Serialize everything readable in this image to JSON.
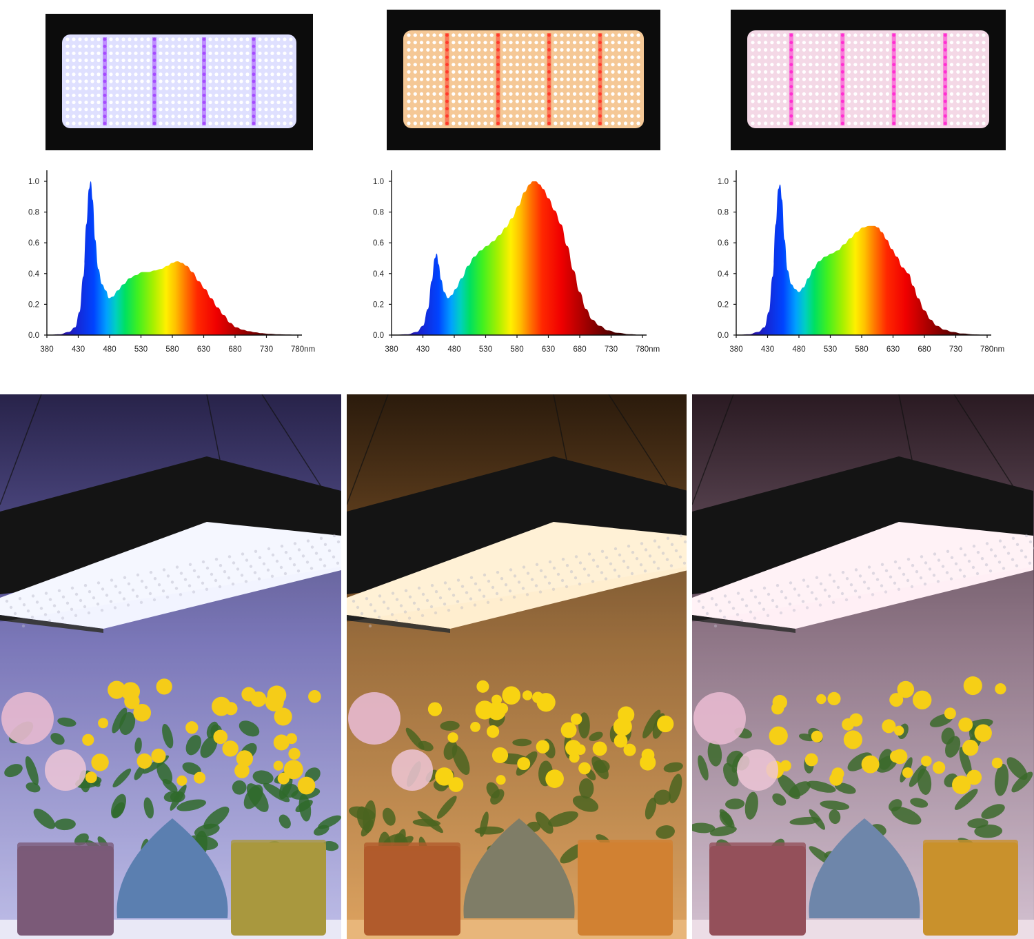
{
  "chart_data": [
    {
      "type": "area",
      "title": "",
      "xlabel": "",
      "ylabel": "",
      "x_unit": "nm",
      "xlim": [
        380,
        780
      ],
      "ylim": [
        0,
        1.0
      ],
      "x_ticks": [
        380,
        430,
        480,
        530,
        580,
        630,
        680,
        730,
        780
      ],
      "x_tick_labels": [
        "380",
        "430",
        "480",
        "530",
        "580",
        "630",
        "680",
        "730",
        "780nm"
      ],
      "y_ticks": [
        0,
        0.2,
        0.4,
        0.6,
        0.8,
        1.0
      ],
      "y_tick_labels": [
        "0.0",
        "0.2",
        "0.4",
        "0.6",
        "0.8",
        "1.0"
      ],
      "grid": false,
      "fill": "spectral-rainbow",
      "series": [
        {
          "x": [
            380,
            400,
            415,
            425,
            432,
            438,
            443,
            447,
            450,
            453,
            457,
            462,
            468,
            474,
            479,
            485,
            493,
            502,
            512,
            522,
            532,
            542,
            552,
            562,
            572,
            580,
            588,
            595,
            603,
            612,
            622,
            632,
            642,
            652,
            662,
            672,
            682,
            692,
            702,
            712,
            722,
            735,
            750,
            765,
            780
          ],
          "y": [
            0.0,
            0.005,
            0.02,
            0.05,
            0.15,
            0.38,
            0.72,
            0.95,
            1.0,
            0.88,
            0.62,
            0.43,
            0.33,
            0.29,
            0.24,
            0.25,
            0.29,
            0.33,
            0.37,
            0.39,
            0.41,
            0.41,
            0.42,
            0.43,
            0.45,
            0.47,
            0.48,
            0.47,
            0.45,
            0.41,
            0.35,
            0.3,
            0.24,
            0.18,
            0.13,
            0.08,
            0.05,
            0.035,
            0.025,
            0.018,
            0.012,
            0.008,
            0.005,
            0.003,
            0.0
          ]
        }
      ]
    },
    {
      "type": "area",
      "title": "",
      "xlabel": "",
      "ylabel": "",
      "x_unit": "nm",
      "xlim": [
        380,
        780
      ],
      "ylim": [
        0,
        1.0
      ],
      "x_ticks": [
        380,
        430,
        480,
        530,
        580,
        630,
        680,
        730,
        780
      ],
      "x_tick_labels": [
        "380",
        "430",
        "480",
        "530",
        "580",
        "630",
        "680",
        "730",
        "780nm"
      ],
      "y_ticks": [
        0,
        0.2,
        0.4,
        0.6,
        0.8,
        1.0
      ],
      "y_tick_labels": [
        "0.0",
        "0.2",
        "0.4",
        "0.6",
        "0.8",
        "1.0"
      ],
      "grid": false,
      "fill": "spectral-rainbow",
      "series": [
        {
          "x": [
            380,
            405,
            420,
            430,
            438,
            444,
            449,
            452,
            455,
            459,
            464,
            470,
            476,
            482,
            492,
            502,
            512,
            522,
            532,
            542,
            552,
            562,
            572,
            582,
            592,
            600,
            605,
            610,
            616,
            622,
            630,
            640,
            650,
            660,
            670,
            680,
            690,
            700,
            712,
            725,
            740,
            760,
            780
          ],
          "y": [
            0.0,
            0.005,
            0.02,
            0.06,
            0.17,
            0.35,
            0.5,
            0.53,
            0.46,
            0.36,
            0.28,
            0.24,
            0.26,
            0.3,
            0.37,
            0.45,
            0.51,
            0.55,
            0.58,
            0.61,
            0.65,
            0.7,
            0.76,
            0.84,
            0.93,
            0.98,
            1.0,
            1.0,
            0.98,
            0.95,
            0.89,
            0.81,
            0.72,
            0.58,
            0.42,
            0.28,
            0.17,
            0.1,
            0.06,
            0.03,
            0.015,
            0.006,
            0.0
          ]
        }
      ]
    },
    {
      "type": "area",
      "title": "",
      "xlabel": "",
      "ylabel": "",
      "x_unit": "nm",
      "xlim": [
        380,
        780
      ],
      "ylim": [
        0,
        1.0
      ],
      "x_ticks": [
        380,
        430,
        480,
        530,
        580,
        630,
        680,
        730,
        780
      ],
      "x_tick_labels": [
        "380",
        "430",
        "480",
        "530",
        "580",
        "630",
        "680",
        "730",
        "780nm"
      ],
      "y_ticks": [
        0,
        0.2,
        0.4,
        0.6,
        0.8,
        1.0
      ],
      "y_tick_labels": [
        "0.0",
        "0.2",
        "0.4",
        "0.6",
        "0.8",
        "1.0"
      ],
      "grid": false,
      "fill": "spectral-rainbow",
      "series": [
        {
          "x": [
            380,
            400,
            415,
            425,
            432,
            438,
            443,
            447,
            450,
            453,
            457,
            462,
            468,
            474,
            480,
            487,
            495,
            503,
            512,
            522,
            532,
            542,
            552,
            562,
            572,
            582,
            592,
            600,
            606,
            612,
            620,
            628,
            636,
            645,
            655,
            662,
            670,
            680,
            690,
            700,
            712,
            725,
            740,
            760,
            780
          ],
          "y": [
            0.0,
            0.005,
            0.02,
            0.05,
            0.15,
            0.38,
            0.72,
            0.95,
            0.98,
            0.88,
            0.62,
            0.42,
            0.33,
            0.3,
            0.28,
            0.31,
            0.37,
            0.43,
            0.48,
            0.51,
            0.53,
            0.55,
            0.59,
            0.63,
            0.67,
            0.7,
            0.71,
            0.71,
            0.7,
            0.67,
            0.62,
            0.56,
            0.51,
            0.44,
            0.4,
            0.32,
            0.24,
            0.16,
            0.1,
            0.06,
            0.035,
            0.02,
            0.01,
            0.004,
            0.0
          ]
        }
      ]
    }
  ],
  "colors": {
    "white_led": "#f4f4ff",
    "warm_led": "#ffe0b0",
    "full_led": "#ffe9ef",
    "uv_strip": "#a44cff",
    "red_strip": "#ff3a2a",
    "pink_strip": "#ff30d0",
    "panel_frame": "#0c0c0c"
  },
  "icons": {
    "panels": [
      "led-grow-light-panel-white",
      "led-grow-light-panel-warm",
      "led-grow-light-panel-full-spectrum"
    ],
    "photos": [
      "plants-under-white-light",
      "plants-under-warm-light",
      "plants-under-full-spectrum-light"
    ]
  }
}
